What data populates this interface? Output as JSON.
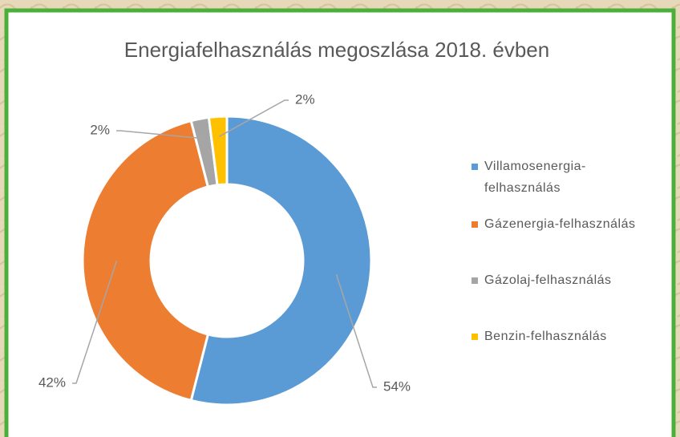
{
  "chart_data": {
    "type": "donut",
    "title": "Energiafelhasználás megoszlása 2018. évben",
    "categories": [
      "Villamosenergia-felhasználás",
      "Gázenergia-felhasználás",
      "Gázolaj-felhasználás",
      "Benzin-felhasználás"
    ],
    "values": [
      54,
      42,
      2,
      2
    ],
    "value_labels": [
      "54%",
      "42%",
      "2%",
      "2%"
    ],
    "colors": [
      "#5b9bd5",
      "#ed7d31",
      "#a5a5a5",
      "#ffc000"
    ],
    "legend": "right"
  }
}
